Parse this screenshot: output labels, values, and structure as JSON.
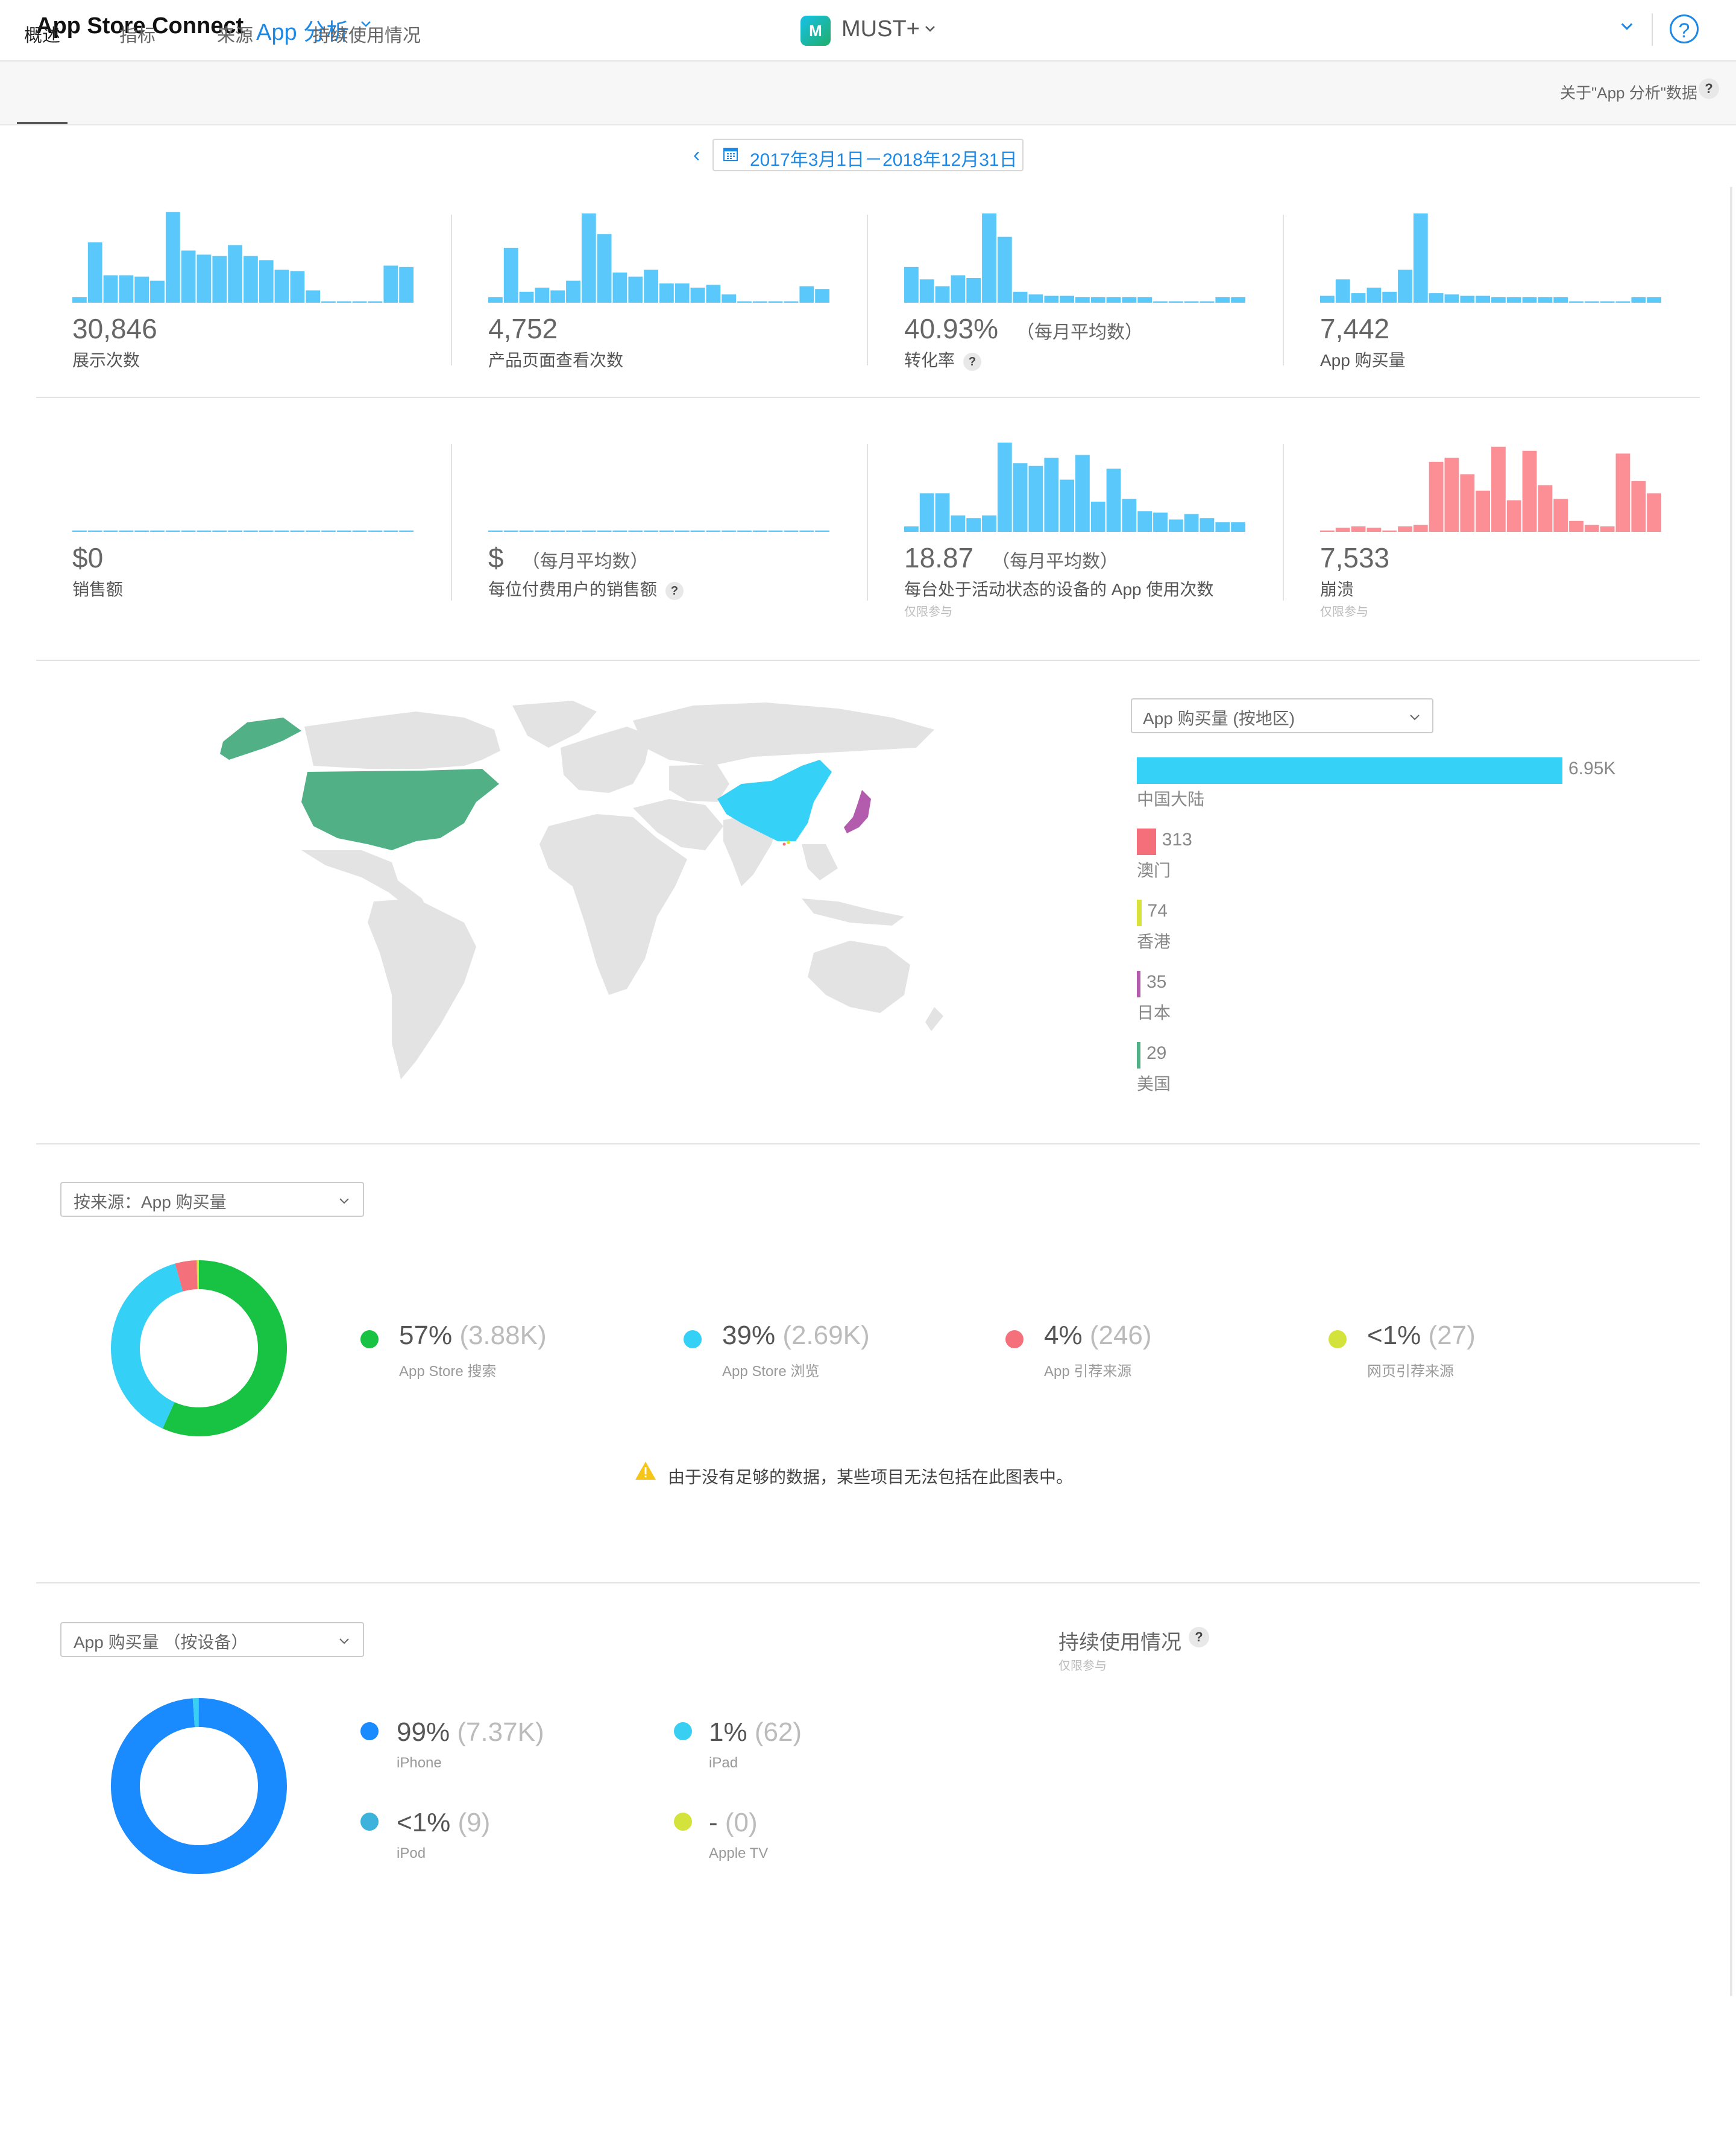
{
  "header": {
    "brand": "App Store Connect",
    "module": "App 分析",
    "app_logo_text": "M",
    "app_name": "MUST+",
    "help_icon": "?"
  },
  "tabs": {
    "items": [
      {
        "label": "概述"
      },
      {
        "label": "指标"
      },
      {
        "label": "来源"
      },
      {
        "label": "持续使用情况"
      }
    ],
    "about_link": "关于\"App 分析\"数据"
  },
  "date_range": {
    "label": "2017年3月1日－2018年12月31日"
  },
  "colors": {
    "metric_blue": "#5ac8fa",
    "crash_red": "#fb8f95",
    "china": "#36d1f7",
    "macau": "#f56f7a",
    "hongkong": "#d8e23a",
    "japan": "#b35cae",
    "usa": "#52b086",
    "land": "#e3e3e3",
    "search": "#18c242",
    "browse": "#34d0f5",
    "referral": "#f4707b",
    "web": "#d4e33c",
    "iphone": "#1a8aff",
    "ipad": "#38cff3",
    "ipod": "#3db3dc",
    "appletv": "#d4e33c"
  },
  "metrics": [
    {
      "value": "30,846",
      "sub": "",
      "label": "展示次数",
      "note": "",
      "has_help": false,
      "color": "#5ac8fa",
      "bars": [
        4,
        44,
        20,
        20,
        19,
        16,
        66,
        38,
        35,
        34,
        42,
        34,
        31,
        24,
        23,
        9,
        1,
        1,
        1,
        1,
        27,
        26
      ]
    },
    {
      "value": "4,752",
      "sub": "（每月平均数）",
      "label": "产品页面查看次数",
      "note": "",
      "has_help": false,
      "color": "#5ac8fa",
      "bars": [
        4,
        40,
        8,
        11,
        9,
        16,
        65,
        50,
        22,
        19,
        24,
        14,
        14,
        11,
        13,
        6,
        1,
        1,
        1,
        1,
        12,
        10
      ]
    },
    {
      "value": "40.93%",
      "sub": "（每月平均数）",
      "label": "转化率",
      "note": "",
      "has_help": true,
      "color": "#5ac8fa",
      "bars": [
        26,
        17,
        12,
        20,
        18,
        65,
        48,
        8,
        6,
        5,
        5,
        4,
        4,
        4,
        4,
        4,
        1,
        1,
        1,
        1,
        4,
        4
      ]
    },
    {
      "value": "7,442",
      "sub": "",
      "label": "App 购买量",
      "note": "",
      "has_help": false,
      "color": "#5ac8fa",
      "bars": [
        5,
        17,
        7,
        11,
        8,
        24,
        65,
        7,
        6,
        5,
        5,
        4,
        4,
        4,
        4,
        4,
        1,
        1,
        1,
        1,
        4,
        4
      ]
    },
    {
      "value": "$0",
      "sub": "",
      "label": "销售额",
      "note": "",
      "has_help": false,
      "color": "#5ac8fa",
      "bars": [
        1,
        1,
        1,
        1,
        1,
        1,
        1,
        1,
        1,
        1,
        1,
        1,
        1,
        1,
        1,
        1,
        1,
        1,
        1,
        1,
        1,
        1
      ]
    },
    {
      "value": "$",
      "sub": "（每月平均数）",
      "label": "每位付费用户的销售额",
      "note": "",
      "has_help": true,
      "color": "#5ac8fa",
      "bars": [
        1,
        1,
        1,
        1,
        1,
        1,
        1,
        1,
        1,
        1,
        1,
        1,
        1,
        1,
        1,
        1,
        1,
        1,
        1,
        1,
        1,
        1
      ]
    },
    {
      "value": "18.87",
      "sub": "（每月平均数）",
      "label": "每台处于活动状态的设备的 App 使用次数",
      "note": "仅限参与",
      "has_help": false,
      "color": "#5ac8fa",
      "bars": [
        4,
        28,
        28,
        12,
        10,
        12,
        65,
        50,
        48,
        54,
        38,
        56,
        22,
        46,
        24,
        15,
        14,
        9,
        13,
        10,
        7,
        7
      ]
    },
    {
      "value": "7,533",
      "sub": "",
      "label": "崩溃",
      "note": "仅限参与",
      "has_help": false,
      "color": "#fb8f95",
      "bars": [
        1,
        3,
        4,
        3,
        1,
        4,
        5,
        51,
        54,
        42,
        30,
        62,
        23,
        59,
        34,
        24,
        8,
        5,
        4,
        57,
        37,
        28
      ]
    }
  ],
  "map": {
    "select_label": "App 购买量 (按地区)",
    "regions": [
      {
        "name": "中国大陆",
        "value": "6.95K",
        "amount": 6950,
        "color": "#36d1f7"
      },
      {
        "name": "澳门",
        "value": "313",
        "amount": 313,
        "color": "#f56f7a"
      },
      {
        "name": "香港",
        "value": "74",
        "amount": 74,
        "color": "#d8e23a"
      },
      {
        "name": "日本",
        "value": "35",
        "amount": 35,
        "color": "#b35cae"
      },
      {
        "name": "美国",
        "value": "29",
        "amount": 29,
        "color": "#52b086"
      }
    ]
  },
  "sources": {
    "select_label": "按来源：App 购买量",
    "items": [
      {
        "pct": "57%",
        "count": "(3.88K)",
        "name": "App Store 搜索",
        "share": 57,
        "color": "#18c242"
      },
      {
        "pct": "39%",
        "count": "(2.69K)",
        "name": "App Store 浏览",
        "share": 39,
        "color": "#34d0f5"
      },
      {
        "pct": "4%",
        "count": "(246)",
        "name": "App 引荐来源",
        "share": 4,
        "color": "#f4707b"
      },
      {
        "pct": "<1%",
        "count": "(27)",
        "name": "网页引荐来源",
        "share": 0.4,
        "color": "#d4e33c"
      }
    ],
    "warning": "由于没有足够的数据，某些项目无法包括在此图表中。"
  },
  "devices": {
    "select_label": "App 购买量 （按设备）",
    "items": [
      {
        "pct": "99%",
        "count": "(7.37K)",
        "name": "iPhone",
        "share": 99,
        "color": "#1a8aff"
      },
      {
        "pct": "1%",
        "count": "(62)",
        "name": "iPad",
        "share": 1,
        "color": "#38cff3"
      },
      {
        "pct": "<1%",
        "count": "(9)",
        "name": "iPod",
        "share": 0.12,
        "color": "#3db3dc"
      },
      {
        "pct": "-",
        "count": "(0)",
        "name": "Apple TV",
        "share": 0,
        "color": "#d4e33c"
      }
    ]
  },
  "retention": {
    "title": "持续使用情况",
    "note": "仅限参与"
  }
}
